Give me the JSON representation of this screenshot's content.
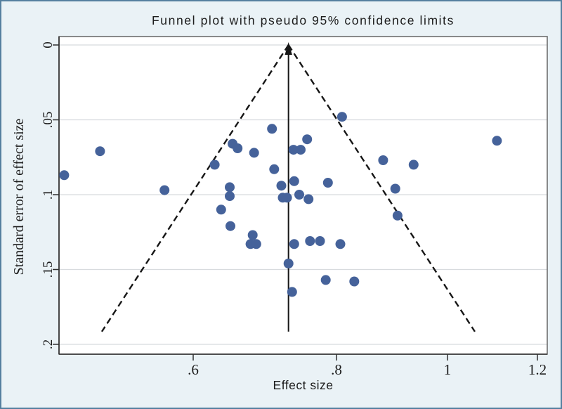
{
  "figure": {
    "background_color": "#eaf2f6",
    "border_color": "#55809f",
    "plot_background": "#ffffff",
    "plot_border_color": "#6e6e6e",
    "axis_line_color": "#303030",
    "gridline_color": "#d8dbde",
    "text_color": "#1c1c1c"
  },
  "chart_data": {
    "type": "scatter",
    "title": "Funnel plot with pseudo 95% confidence limits",
    "xlabel": "Effect size",
    "ylabel": "Standard error of effect size",
    "x_ticks": [
      {
        "value": 0.6,
        "label": ".6"
      },
      {
        "value": 0.8,
        "label": ".8"
      },
      {
        "value": 1.0,
        "label": "1"
      },
      {
        "value": 1.2,
        "label": "1.2"
      }
    ],
    "y_ticks": [
      {
        "value": 0.0,
        "label": "0"
      },
      {
        "value": 0.05,
        "label": ".05"
      },
      {
        "value": 0.1,
        "label": ".1"
      },
      {
        "value": 0.15,
        "label": ".15"
      },
      {
        "value": 0.2,
        "label": ".2"
      }
    ],
    "xlim": [
      0.413,
      1.222
    ],
    "ylim_se": [
      -0.006,
      0.207
    ],
    "y_axis_inverted": true,
    "grid": "horizontal-at-y-ticks",
    "legend": "none",
    "point_color": "#45629a",
    "line_color": "#161616",
    "points_es_se": [
      [
        0.42,
        0.087
      ],
      [
        0.47,
        0.071
      ],
      [
        0.56,
        0.097
      ],
      [
        0.63,
        0.08
      ],
      [
        0.655,
        0.066
      ],
      [
        0.662,
        0.069
      ],
      [
        0.685,
        0.072
      ],
      [
        0.71,
        0.056
      ],
      [
        0.74,
        0.07
      ],
      [
        0.75,
        0.07
      ],
      [
        0.759,
        0.063
      ],
      [
        0.81,
        0.048
      ],
      [
        0.713,
        0.083
      ],
      [
        0.651,
        0.095
      ],
      [
        0.651,
        0.101
      ],
      [
        0.723,
        0.094
      ],
      [
        0.741,
        0.091
      ],
      [
        0.788,
        0.092
      ],
      [
        0.725,
        0.102
      ],
      [
        0.731,
        0.102
      ],
      [
        0.748,
        0.1
      ],
      [
        0.761,
        0.103
      ],
      [
        0.884,
        0.077
      ],
      [
        0.939,
        0.08
      ],
      [
        0.906,
        0.096
      ],
      [
        0.91,
        0.114
      ],
      [
        1.11,
        0.064
      ],
      [
        0.639,
        0.11
      ],
      [
        0.652,
        0.121
      ],
      [
        0.683,
        0.127
      ],
      [
        0.68,
        0.133
      ],
      [
        0.688,
        0.133
      ],
      [
        0.741,
        0.133
      ],
      [
        0.763,
        0.131
      ],
      [
        0.777,
        0.131
      ],
      [
        0.807,
        0.133
      ],
      [
        0.733,
        0.146
      ],
      [
        0.738,
        0.165
      ],
      [
        0.785,
        0.157
      ],
      [
        0.832,
        0.158
      ]
    ],
    "pooled_effect_line": {
      "es": 0.733,
      "se_from": 0.0,
      "se_to": 0.1915,
      "style": "solid",
      "arrowhead_at_top": true
    },
    "pseudo_ci_lines": {
      "style": "dashed",
      "apex": [
        0.733,
        0.0
      ],
      "left_end": [
        0.4725,
        0.1915
      ],
      "right_end": [
        1.0609,
        0.1915
      ]
    }
  }
}
